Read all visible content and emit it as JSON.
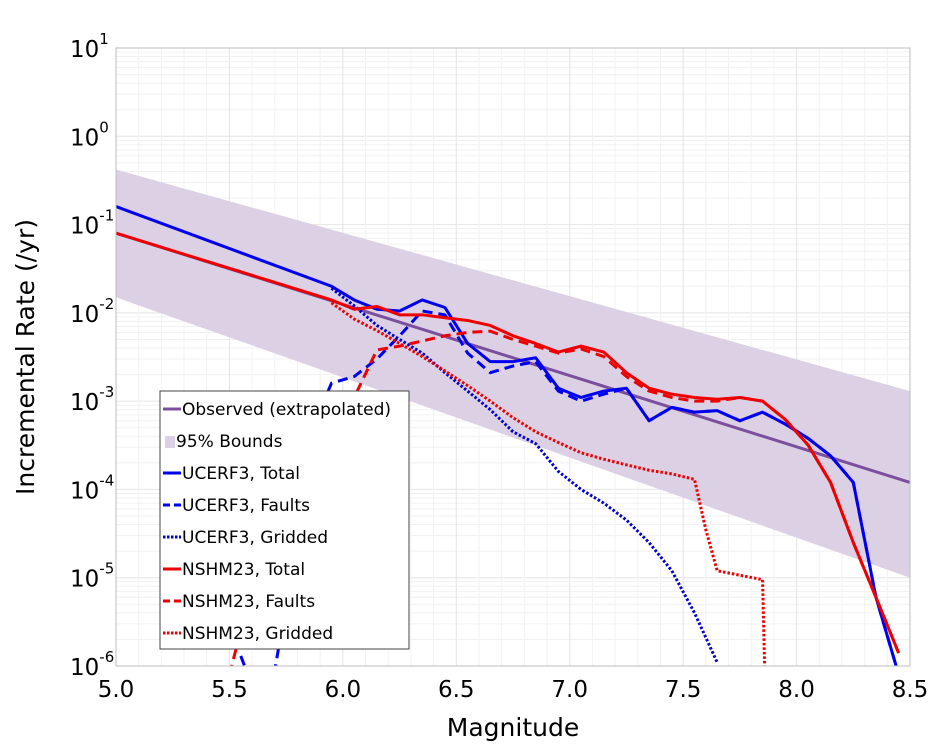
{
  "chart_data": {
    "type": "line",
    "title": "",
    "xlabel": "Magnitude",
    "ylabel": "Incremental Rate (/yr)",
    "xlim": [
      5.0,
      8.5
    ],
    "ylim": [
      1e-06,
      10
    ],
    "yscale": "log",
    "grid": true,
    "legend_position": "bottom-left",
    "x_ticks": [
      "5.0",
      "5.5",
      "6.0",
      "6.5",
      "7.0",
      "7.5",
      "8.0",
      "8.5"
    ],
    "y_ticks": [
      {
        "base": "10",
        "exp": "1"
      },
      {
        "base": "10",
        "exp": "0"
      },
      {
        "base": "10",
        "exp": "-1"
      },
      {
        "base": "10",
        "exp": "-2"
      },
      {
        "base": "10",
        "exp": "-3"
      },
      {
        "base": "10",
        "exp": "-4"
      },
      {
        "base": "10",
        "exp": "-5"
      },
      {
        "base": "10",
        "exp": "-6"
      }
    ],
    "bounds": {
      "name": "95% Bounds",
      "color": "#dcd0e4",
      "x": [
        5.0,
        8.5
      ],
      "upper": [
        0.42,
        0.0013
      ],
      "lower": [
        0.015,
        1e-05
      ]
    },
    "series": [
      {
        "name": "Observed (extrapolated)",
        "color": "#7b4f9d",
        "style": "solid",
        "width": 3,
        "x": [
          5.0,
          8.5
        ],
        "y": [
          0.08,
          0.00012
        ]
      },
      {
        "name": "UCERF3, Total",
        "color": "#0000ee",
        "style": "solid",
        "width": 3,
        "x": [
          5.0,
          5.95,
          6.05,
          6.15,
          6.25,
          6.35,
          6.45,
          6.55,
          6.65,
          6.75,
          6.85,
          6.95,
          7.05,
          7.15,
          7.25,
          7.35,
          7.45,
          7.55,
          7.65,
          7.75,
          7.85,
          7.95,
          8.05,
          8.15,
          8.25,
          8.35,
          8.45
        ],
        "y": [
          0.16,
          0.02,
          0.014,
          0.011,
          0.0105,
          0.014,
          0.0115,
          0.0045,
          0.0028,
          0.0028,
          0.0031,
          0.0014,
          0.0011,
          0.0013,
          0.0014,
          0.0006,
          0.00085,
          0.00075,
          0.00078,
          0.0006,
          0.00075,
          0.00055,
          0.00038,
          0.00024,
          0.00012,
          6e-06,
          8e-07
        ]
      },
      {
        "name": "UCERF3, Faults",
        "color": "#0000ee",
        "style": "dashed",
        "width": 3,
        "x": [
          5.55,
          5.6,
          5.65,
          5.7,
          5.75,
          5.8,
          5.85,
          5.9,
          5.95,
          6.05,
          6.15,
          6.25,
          6.35,
          6.45,
          6.55,
          6.65,
          6.75,
          6.85,
          6.95,
          7.05,
          7.15,
          7.25,
          7.35,
          7.45,
          7.55,
          7.65,
          7.75,
          7.85,
          7.95,
          8.05,
          8.15,
          8.25,
          8.35,
          8.45
        ],
        "y": [
          1.3e-06,
          6e-07,
          4e-07,
          9e-07,
          5e-06,
          3e-05,
          0.0002,
          0.0008,
          0.0016,
          0.0019,
          0.003,
          0.0055,
          0.0105,
          0.0095,
          0.0035,
          0.0021,
          0.0025,
          0.0028,
          0.0013,
          0.001,
          0.0012,
          0.0014,
          0.0006,
          0.00085,
          0.00075,
          0.00078,
          0.0006,
          0.00075,
          0.00055,
          0.00038,
          0.00024,
          0.00012,
          6e-06,
          8e-07
        ]
      },
      {
        "name": "UCERF3, Gridded",
        "color": "#0000cc",
        "style": "dotted",
        "width": 3,
        "x": [
          5.95,
          6.05,
          6.15,
          6.25,
          6.35,
          6.45,
          6.55,
          6.65,
          6.75,
          6.85,
          6.95,
          7.05,
          7.15,
          7.25,
          7.35,
          7.45,
          7.55,
          7.65
        ],
        "y": [
          0.019,
          0.012,
          0.0072,
          0.005,
          0.0035,
          0.0021,
          0.0013,
          0.0008,
          0.00045,
          0.00033,
          0.00016,
          0.0001,
          7e-05,
          4.5e-05,
          2.5e-05,
          1.2e-05,
          4e-06,
          1.1e-06
        ]
      },
      {
        "name": "NSHM23, Total",
        "color": "#ee0000",
        "style": "solid",
        "width": 3,
        "x": [
          5.0,
          5.95,
          6.05,
          6.15,
          6.25,
          6.35,
          6.45,
          6.55,
          6.65,
          6.75,
          6.85,
          6.95,
          7.05,
          7.15,
          7.25,
          7.35,
          7.45,
          7.55,
          7.65,
          7.75,
          7.85,
          7.95,
          8.05,
          8.15,
          8.25,
          8.35,
          8.45
        ],
        "y": [
          0.08,
          0.014,
          0.011,
          0.0118,
          0.0095,
          0.0095,
          0.0088,
          0.0082,
          0.0072,
          0.0055,
          0.0045,
          0.0036,
          0.0042,
          0.0036,
          0.0021,
          0.0014,
          0.0012,
          0.0011,
          0.00105,
          0.0011,
          0.001,
          0.00062,
          0.00032,
          0.00012,
          2.5e-05,
          6e-06,
          1.4e-06
        ]
      },
      {
        "name": "NSHM23, Faults",
        "color": "#ee0000",
        "style": "dashed",
        "width": 3,
        "x": [
          5.5,
          5.55,
          5.6,
          5.65,
          5.7,
          5.75,
          5.8,
          5.85,
          5.9,
          5.95,
          6.05,
          6.15,
          6.25,
          6.35,
          6.45,
          6.55,
          6.65,
          6.75,
          6.85,
          6.95,
          7.05,
          7.15,
          7.25,
          7.35,
          7.45,
          7.55,
          7.65,
          7.75,
          7.85,
          7.95,
          8.05,
          8.15,
          8.25,
          8.35,
          8.45
        ],
        "y": [
          8e-07,
          2.5e-06,
          8e-06,
          2e-05,
          4e-05,
          9e-05,
          0.0002,
          0.0004,
          0.0007,
          0.0008,
          0.0011,
          0.0038,
          0.0042,
          0.0048,
          0.0055,
          0.006,
          0.0062,
          0.005,
          0.0042,
          0.0035,
          0.0039,
          0.0032,
          0.0019,
          0.0013,
          0.0011,
          0.001,
          0.001,
          0.0011,
          0.001,
          0.00062,
          0.00032,
          0.00012,
          2.5e-05,
          6e-06,
          1.4e-06
        ]
      },
      {
        "name": "NSHM23, Gridded",
        "color": "#ee0000",
        "style": "dotted",
        "width": 3,
        "x": [
          5.95,
          6.05,
          6.15,
          6.25,
          6.35,
          6.45,
          6.55,
          6.65,
          6.75,
          6.85,
          6.95,
          7.05,
          7.15,
          7.25,
          7.35,
          7.45,
          7.55,
          7.6,
          7.65,
          7.85,
          7.86
        ],
        "y": [
          0.013,
          0.0085,
          0.0063,
          0.0045,
          0.0032,
          0.0022,
          0.0015,
          0.001,
          0.00065,
          0.00045,
          0.00034,
          0.00026,
          0.00022,
          0.00019,
          0.000165,
          0.00015,
          0.00013,
          3.5e-05,
          1.2e-05,
          9.5e-06,
          8e-07
        ]
      }
    ],
    "legend": [
      {
        "label": "Observed (extrapolated)",
        "kind": "line",
        "color": "#7b4f9d",
        "style": "solid"
      },
      {
        "label": "95% Bounds",
        "kind": "patch",
        "color": "#dcd0e4"
      },
      {
        "label": "UCERF3, Total",
        "kind": "line",
        "color": "#0000ee",
        "style": "solid"
      },
      {
        "label": "UCERF3, Faults",
        "kind": "line",
        "color": "#0000ee",
        "style": "dashed"
      },
      {
        "label": "UCERF3, Gridded",
        "kind": "line",
        "color": "#0000cc",
        "style": "dotted"
      },
      {
        "label": "NSHM23, Total",
        "kind": "line",
        "color": "#ee0000",
        "style": "solid"
      },
      {
        "label": "NSHM23, Faults",
        "kind": "line",
        "color": "#ee0000",
        "style": "dashed"
      },
      {
        "label": "NSHM23, Gridded",
        "kind": "line",
        "color": "#ee0000",
        "style": "dotted"
      }
    ]
  }
}
